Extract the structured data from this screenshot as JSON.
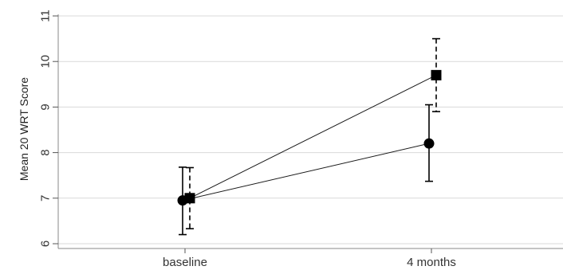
{
  "chart_data": {
    "type": "line",
    "title": "",
    "xlabel": "",
    "ylabel": "Mean 20 WRT Score",
    "categories": [
      "baseline",
      "4 months"
    ],
    "ylim": [
      6,
      11
    ],
    "yticks": [
      6,
      7,
      8,
      9,
      10,
      11
    ],
    "grid": true,
    "legend": "none",
    "series": [
      {
        "marker": "circle",
        "errorbar_style": "solid",
        "values": [
          6.95,
          8.2
        ],
        "lower": [
          6.2,
          7.37
        ],
        "upper": [
          7.68,
          9.05
        ]
      },
      {
        "marker": "square",
        "errorbar_style": "dashed",
        "values": [
          7.0,
          9.7
        ],
        "lower": [
          6.33,
          8.9
        ],
        "upper": [
          7.67,
          10.5
        ]
      }
    ],
    "colors": {
      "markers": "#000000",
      "grid": "#d9d9d9",
      "background": "#ffffff"
    }
  }
}
